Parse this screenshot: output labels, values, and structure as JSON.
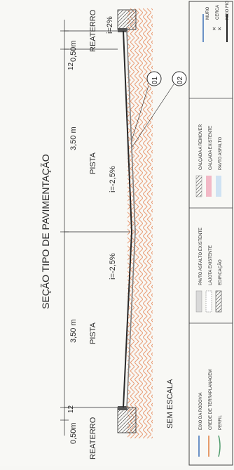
{
  "drawing": {
    "title": "SEÇÃO TIPO DE PAVIMENTAÇÃO",
    "scale_note": "SEM ESCALA",
    "dimensions": {
      "shoulder_left": "0,50m",
      "shoulder_right": "0,50m",
      "lane_left": "3,50 m",
      "lane_right": "3,50 m",
      "curb_left": "12",
      "curb_right": "12"
    },
    "labels": {
      "fill_left": "REATERRO",
      "fill_right": "REATERRO",
      "lane_left": "PISTA",
      "lane_right": "PISTA",
      "slope_left": "i=-2,5%",
      "slope_right": "i=-2,5%",
      "slope_shoulder": "i=2%"
    },
    "callouts": [
      "01",
      "02"
    ]
  },
  "legend": {
    "col1": [
      "EIXO DA RODOVIA",
      "CREDE DE TERRAPLANAGEM",
      "PERFIL"
    ],
    "col2": [
      "PAVTO ASFALTO EXISTENTE",
      "LAJOTA EXISTENTE",
      "EDIFICAÇÃO"
    ],
    "col3": [
      "CALÇADA A REMOVER",
      "CALÇADA EXISTENTE",
      "PAVTO ASFALTO"
    ],
    "col4": [
      "MURO",
      "CERCA",
      "MEIO FIO"
    ]
  },
  "colors": {
    "ink": "#2a2a2a",
    "hatch": "#e9a07a",
    "road": "#7f7f7f",
    "pink_fill": "#f2b8c6",
    "blue_fill": "#cfe2f3",
    "axis_blue": "#3b6fb6",
    "terrain_orange": "#e07a3a",
    "profile_green": "#4e9a6b"
  }
}
